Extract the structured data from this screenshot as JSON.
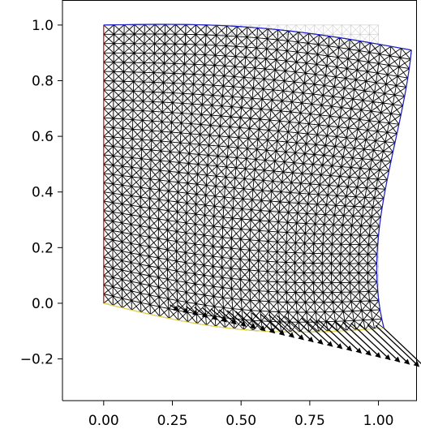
{
  "chart_data": {
    "type": "scatter",
    "title": "",
    "xlabel": "",
    "ylabel": "",
    "xlim": [
      -0.15,
      1.14
    ],
    "ylim": [
      -0.35,
      1.09
    ],
    "xticks": [
      0.0,
      0.25,
      0.5,
      0.75,
      1.0
    ],
    "xtick_labels": [
      "0.00",
      "0.25",
      "0.50",
      "0.75",
      "1.00"
    ],
    "yticks": [
      -0.2,
      0.0,
      0.2,
      0.4,
      0.6,
      0.8,
      1.0
    ],
    "ytick_labels": [
      "−0.2",
      "0.0",
      "0.2",
      "0.4",
      "0.6",
      "0.8",
      "1.0"
    ],
    "grid": false,
    "reference_mesh": {
      "x_range": [
        0,
        1
      ],
      "y_range": [
        0,
        1
      ],
      "color": "#bbbbbb"
    },
    "deformed_mesh": {
      "divisions": 30,
      "color": "#000000",
      "corners": {
        "bottom_left": [
          0.0,
          0.0
        ],
        "bottom_right": [
          1.02,
          -0.09
        ],
        "top_left": [
          0.0,
          1.0
        ],
        "top_right": [
          1.12,
          0.91
        ]
      },
      "boundary_colors": {
        "left": "#d62728",
        "bottom": "#e6d84a",
        "right": "#1f1fcc",
        "top": "#1f1fcc"
      }
    },
    "traction_arrows": {
      "color": "#000000",
      "vectors": [
        {
          "x": 0.24,
          "y": -0.005,
          "dx": 0.03,
          "dy": -0.02
        },
        {
          "x": 0.27,
          "y": -0.008,
          "dx": 0.035,
          "dy": -0.025
        },
        {
          "x": 0.3,
          "y": -0.011,
          "dx": 0.04,
          "dy": -0.03
        },
        {
          "x": 0.33,
          "y": -0.014,
          "dx": 0.045,
          "dy": -0.035
        },
        {
          "x": 0.36,
          "y": -0.017,
          "dx": 0.05,
          "dy": -0.04
        },
        {
          "x": 0.39,
          "y": -0.02,
          "dx": 0.055,
          "dy": -0.045
        },
        {
          "x": 0.42,
          "y": -0.023,
          "dx": 0.06,
          "dy": -0.05
        },
        {
          "x": 0.45,
          "y": -0.026,
          "dx": 0.065,
          "dy": -0.055
        },
        {
          "x": 0.48,
          "y": -0.029,
          "dx": 0.07,
          "dy": -0.06
        },
        {
          "x": 0.51,
          "y": -0.032,
          "dx": 0.075,
          "dy": -0.065
        },
        {
          "x": 0.54,
          "y": -0.035,
          "dx": 0.08,
          "dy": -0.07
        },
        {
          "x": 0.57,
          "y": -0.038,
          "dx": 0.085,
          "dy": -0.075
        },
        {
          "x": 0.6,
          "y": -0.041,
          "dx": 0.09,
          "dy": -0.08
        },
        {
          "x": 0.63,
          "y": -0.044,
          "dx": 0.095,
          "dy": -0.085
        },
        {
          "x": 0.66,
          "y": -0.047,
          "dx": 0.1,
          "dy": -0.09
        },
        {
          "x": 0.69,
          "y": -0.05,
          "dx": 0.105,
          "dy": -0.095
        },
        {
          "x": 0.72,
          "y": -0.053,
          "dx": 0.11,
          "dy": -0.1
        },
        {
          "x": 0.75,
          "y": -0.056,
          "dx": 0.115,
          "dy": -0.105
        },
        {
          "x": 0.78,
          "y": -0.059,
          "dx": 0.12,
          "dy": -0.11
        },
        {
          "x": 0.81,
          "y": -0.062,
          "dx": 0.125,
          "dy": -0.115
        },
        {
          "x": 0.84,
          "y": -0.065,
          "dx": 0.13,
          "dy": -0.12
        },
        {
          "x": 0.87,
          "y": -0.068,
          "dx": 0.135,
          "dy": -0.125
        },
        {
          "x": 0.9,
          "y": -0.071,
          "dx": 0.14,
          "dy": -0.13
        },
        {
          "x": 0.93,
          "y": -0.074,
          "dx": 0.145,
          "dy": -0.135
        },
        {
          "x": 0.96,
          "y": -0.077,
          "dx": 0.15,
          "dy": -0.14
        },
        {
          "x": 0.99,
          "y": -0.08,
          "dx": 0.155,
          "dy": -0.145
        },
        {
          "x": 1.02,
          "y": -0.09,
          "dx": 0.16,
          "dy": -0.15
        }
      ]
    }
  }
}
